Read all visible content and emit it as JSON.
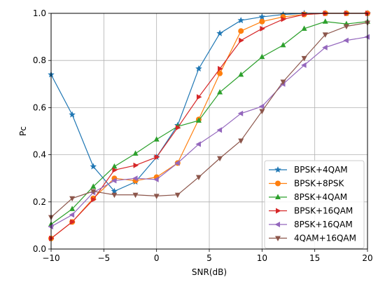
{
  "chart_data": {
    "type": "line",
    "title": "",
    "xlabel": "SNR(dB)",
    "ylabel": "Pc",
    "xlim": [
      -10,
      20
    ],
    "ylim": [
      0.0,
      1.0
    ],
    "xticks": [
      -10,
      -5,
      0,
      5,
      10,
      15,
      20
    ],
    "yticks": [
      0.0,
      0.2,
      0.4,
      0.6,
      0.8,
      1.0
    ],
    "xtick_labels": [
      "−10",
      "−5",
      "0",
      "5",
      "10",
      "15",
      "20"
    ],
    "ytick_labels": [
      "0.0",
      "0.2",
      "0.4",
      "0.6",
      "0.8",
      "1.0"
    ],
    "grid": true,
    "legend_position": "lower-right",
    "x": [
      -10,
      -8,
      -6,
      -4,
      -2,
      0,
      2,
      4,
      6,
      8,
      10,
      12,
      14,
      16,
      18,
      20
    ],
    "series": [
      {
        "name": "BPSK+4QAM",
        "color": "#1f77b4",
        "marker": "star",
        "values": [
          0.74,
          0.57,
          0.35,
          0.245,
          0.285,
          0.39,
          0.525,
          0.765,
          0.915,
          0.97,
          0.985,
          0.995,
          1.0,
          1.0,
          1.0,
          1.0
        ]
      },
      {
        "name": "BPSK+8PSK",
        "color": "#ff7f0e",
        "marker": "circle",
        "values": [
          0.045,
          0.115,
          0.215,
          0.3,
          0.29,
          0.305,
          0.365,
          0.55,
          0.745,
          0.925,
          0.965,
          0.985,
          0.995,
          1.0,
          1.0,
          1.0
        ]
      },
      {
        "name": "8PSK+4QAM",
        "color": "#2ca02c",
        "marker": "triangle-up",
        "values": [
          0.105,
          0.17,
          0.265,
          0.35,
          0.405,
          0.465,
          0.52,
          0.545,
          0.665,
          0.74,
          0.815,
          0.865,
          0.935,
          0.965,
          0.955,
          0.965
        ]
      },
      {
        "name": "BPSK+16QAM",
        "color": "#d62728",
        "marker": "triangle-right",
        "values": [
          0.045,
          0.115,
          0.21,
          0.335,
          0.355,
          0.39,
          0.515,
          0.645,
          0.765,
          0.885,
          0.935,
          0.975,
          0.995,
          1.0,
          1.0,
          1.0
        ]
      },
      {
        "name": "8PSK+16QAM",
        "color": "#9467bd",
        "marker": "triangle-left",
        "values": [
          0.095,
          0.145,
          0.24,
          0.29,
          0.3,
          0.295,
          0.365,
          0.445,
          0.505,
          0.575,
          0.605,
          0.7,
          0.78,
          0.855,
          0.885,
          0.9
        ]
      },
      {
        "name": "4QAM+16QAM",
        "color": "#8c564b",
        "marker": "triangle-down",
        "values": [
          0.135,
          0.215,
          0.245,
          0.23,
          0.23,
          0.225,
          0.23,
          0.305,
          0.385,
          0.46,
          0.585,
          0.71,
          0.81,
          0.91,
          0.945,
          0.96
        ]
      }
    ]
  }
}
